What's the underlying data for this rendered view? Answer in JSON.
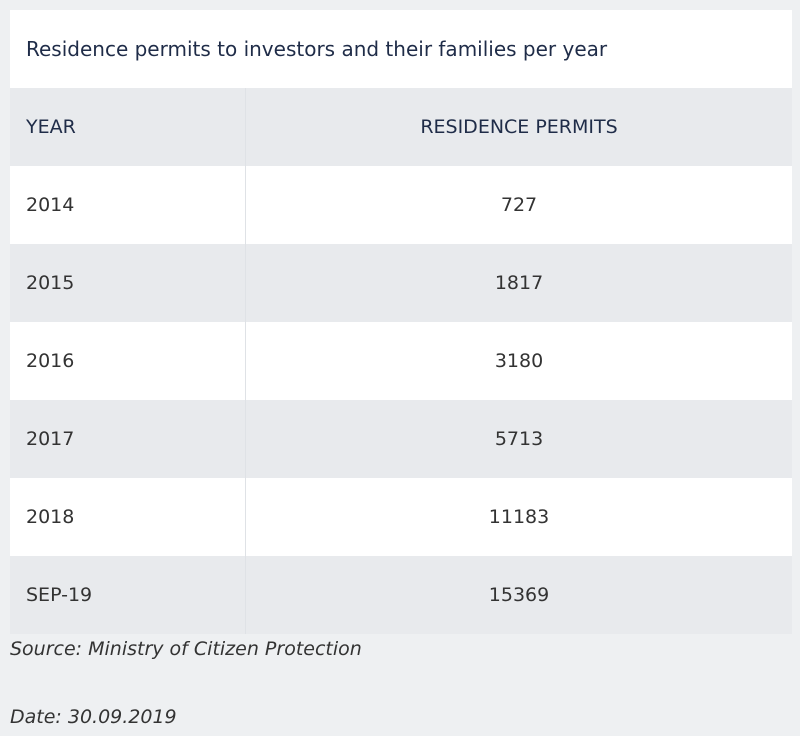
{
  "table": {
    "title": "Residence permits to investors and their families per year",
    "header": [
      "YEAR",
      "RESIDENCE PERMITS"
    ],
    "rows": [
      [
        "2014",
        727
      ],
      [
        "2015",
        1817
      ],
      [
        "2016",
        3180
      ],
      [
        "2017",
        5713
      ],
      [
        "2018",
        11183
      ],
      [
        "SEP-19",
        15369
      ]
    ]
  },
  "footer": {
    "source": "Source: Ministry of Citizen Protection",
    "date": "Date: 30.09.2019"
  }
}
